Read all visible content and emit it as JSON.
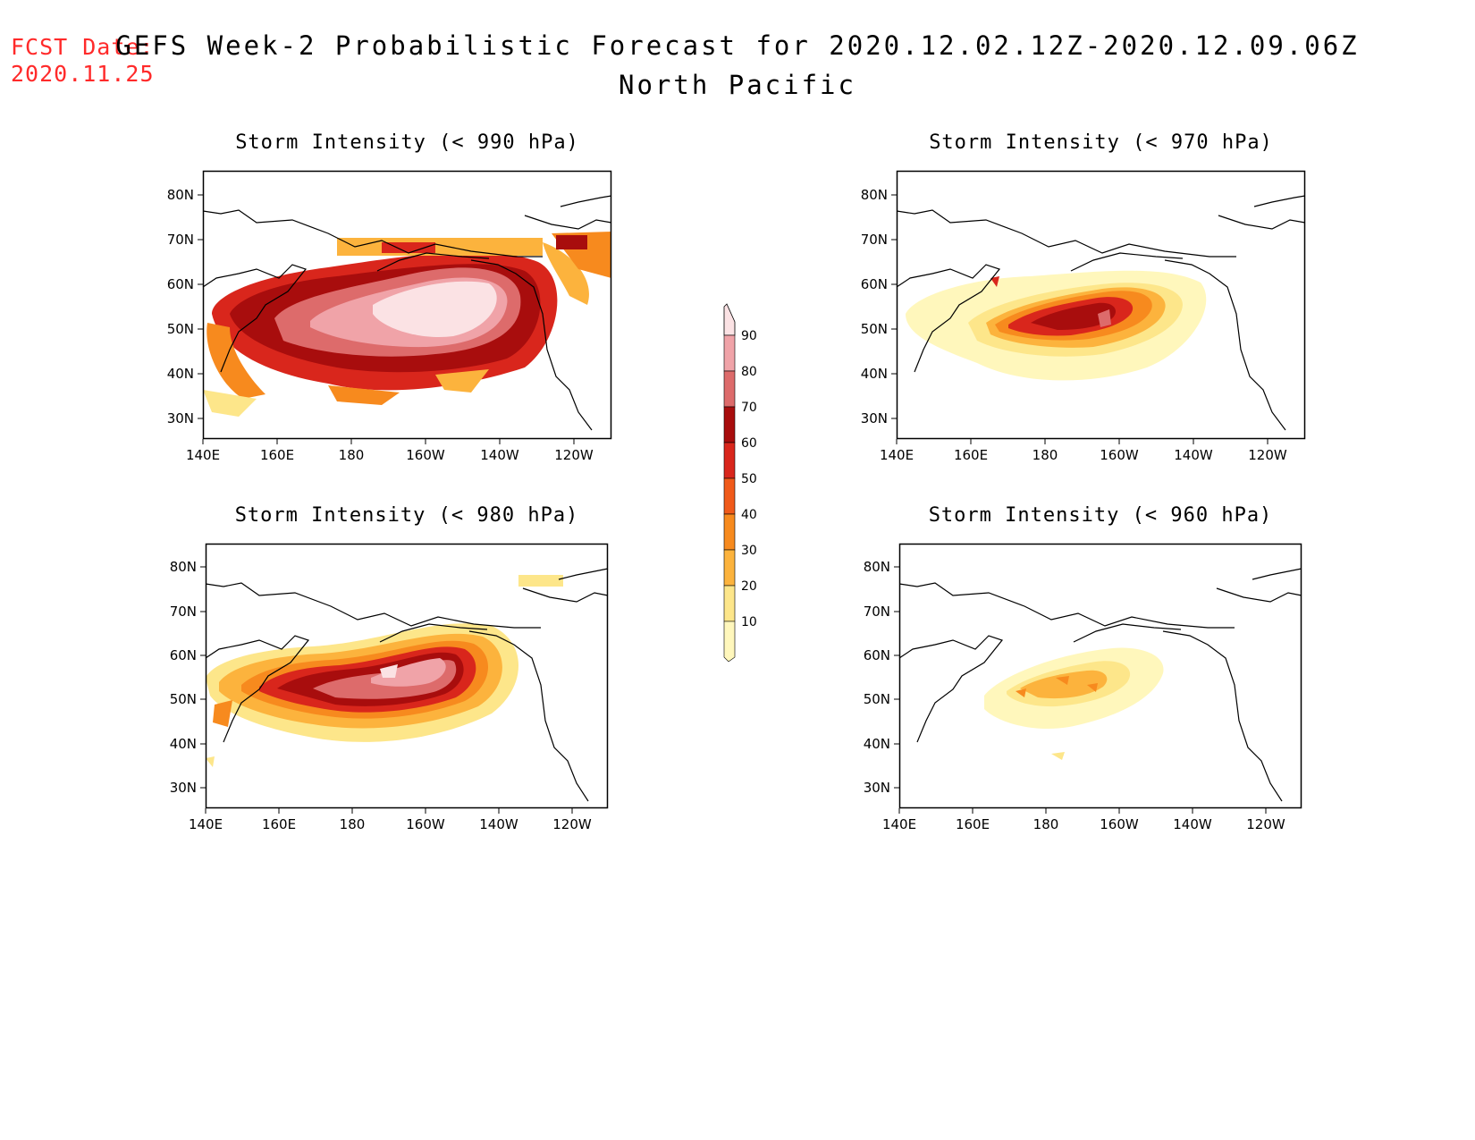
{
  "fcst": {
    "line1": "FCST Date:",
    "line2": "2020.11.25"
  },
  "title": {
    "main": "GEFS Week-2 Probabilistic Forecast for 2020.12.02.12Z-2020.12.09.06Z",
    "region": "North Pacific"
  },
  "axes": {
    "lon_labels": [
      "140E",
      "160E",
      "180",
      "160W",
      "140W",
      "120W"
    ],
    "lat_labels": [
      "80N",
      "70N",
      "60N",
      "50N",
      "40N",
      "30N"
    ]
  },
  "colorbar": {
    "levels": [
      "10",
      "20",
      "30",
      "40",
      "50",
      "60",
      "70",
      "80",
      "90"
    ],
    "colors": [
      "#fff7bc",
      "#fde68a",
      "#fcb33d",
      "#f78a1e",
      "#f05a1a",
      "#d9261c",
      "#a80d0d",
      "#dd6b6b",
      "#f0a3a8",
      "#fbe2e4"
    ]
  },
  "panels": [
    {
      "id": "p990",
      "title": "Storm Intensity (< 990 hPa)"
    },
    {
      "id": "p970",
      "title": "Storm Intensity (< 970 hPa)"
    },
    {
      "id": "p980",
      "title": "Storm Intensity (< 980 hPa)"
    },
    {
      "id": "p960",
      "title": "Storm Intensity (< 960 hPa)"
    }
  ]
}
